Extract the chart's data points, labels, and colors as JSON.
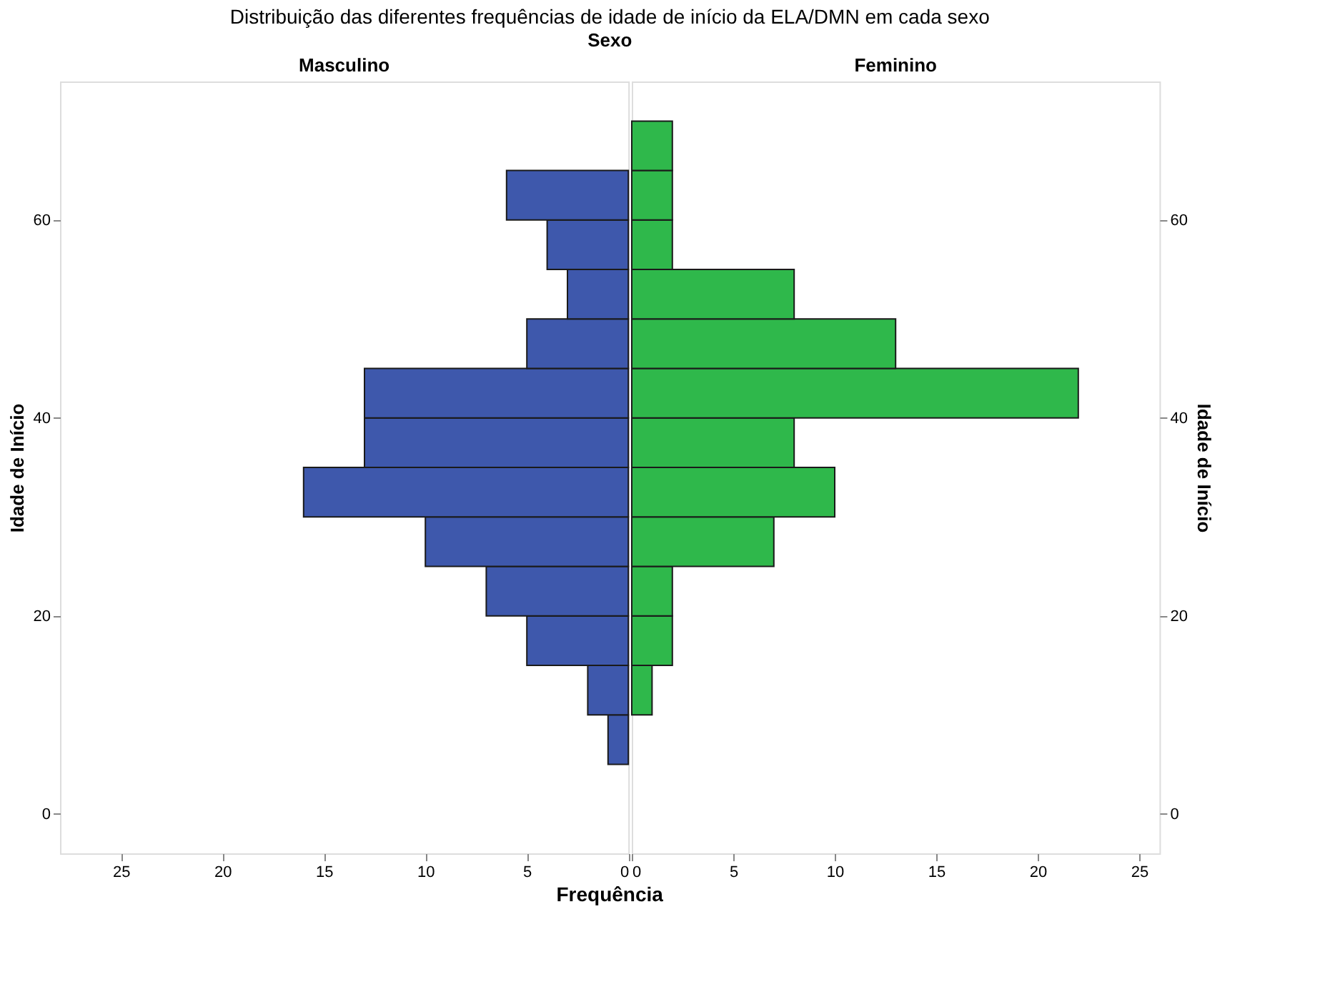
{
  "chart_data": [
    {
      "type": "histogram",
      "orientation": "horizontal",
      "title": "Masculino",
      "annotations": [
        "Distribuição das diferentes frequências de idade de início da ELA/DMN em cada sexo",
        "Sexo"
      ],
      "xlabel": "Frequência",
      "ylabel": "Idade de Início",
      "bins": [
        5,
        10,
        15,
        20,
        25,
        30,
        35,
        40,
        45,
        50,
        55,
        60,
        65,
        70
      ],
      "values": [
        1,
        2,
        5,
        7,
        10,
        16,
        13,
        13,
        5,
        3,
        4,
        6,
        0
      ],
      "color": "#3e58ac",
      "xlim": [
        28,
        0
      ],
      "xticks": [
        25,
        20,
        15,
        10,
        5,
        0
      ],
      "ylim": [
        -4,
        74
      ],
      "yticks": [
        0,
        20,
        40,
        60
      ],
      "grid": false
    },
    {
      "type": "histogram",
      "orientation": "horizontal",
      "title": "Feminino",
      "ylabel": "Idade de Início",
      "bins": [
        5,
        10,
        15,
        20,
        25,
        30,
        35,
        40,
        45,
        50,
        55,
        60,
        65,
        70
      ],
      "values": [
        0,
        1,
        2,
        2,
        7,
        10,
        8,
        22,
        13,
        8,
        2,
        2,
        2
      ],
      "color": "#2fb84b",
      "xlim": [
        0,
        26
      ],
      "xticks": [
        0,
        5,
        10,
        15,
        20,
        25
      ],
      "ylim": [
        -4,
        74
      ],
      "yticks": [
        0,
        20,
        40,
        60
      ],
      "grid": false
    }
  ]
}
